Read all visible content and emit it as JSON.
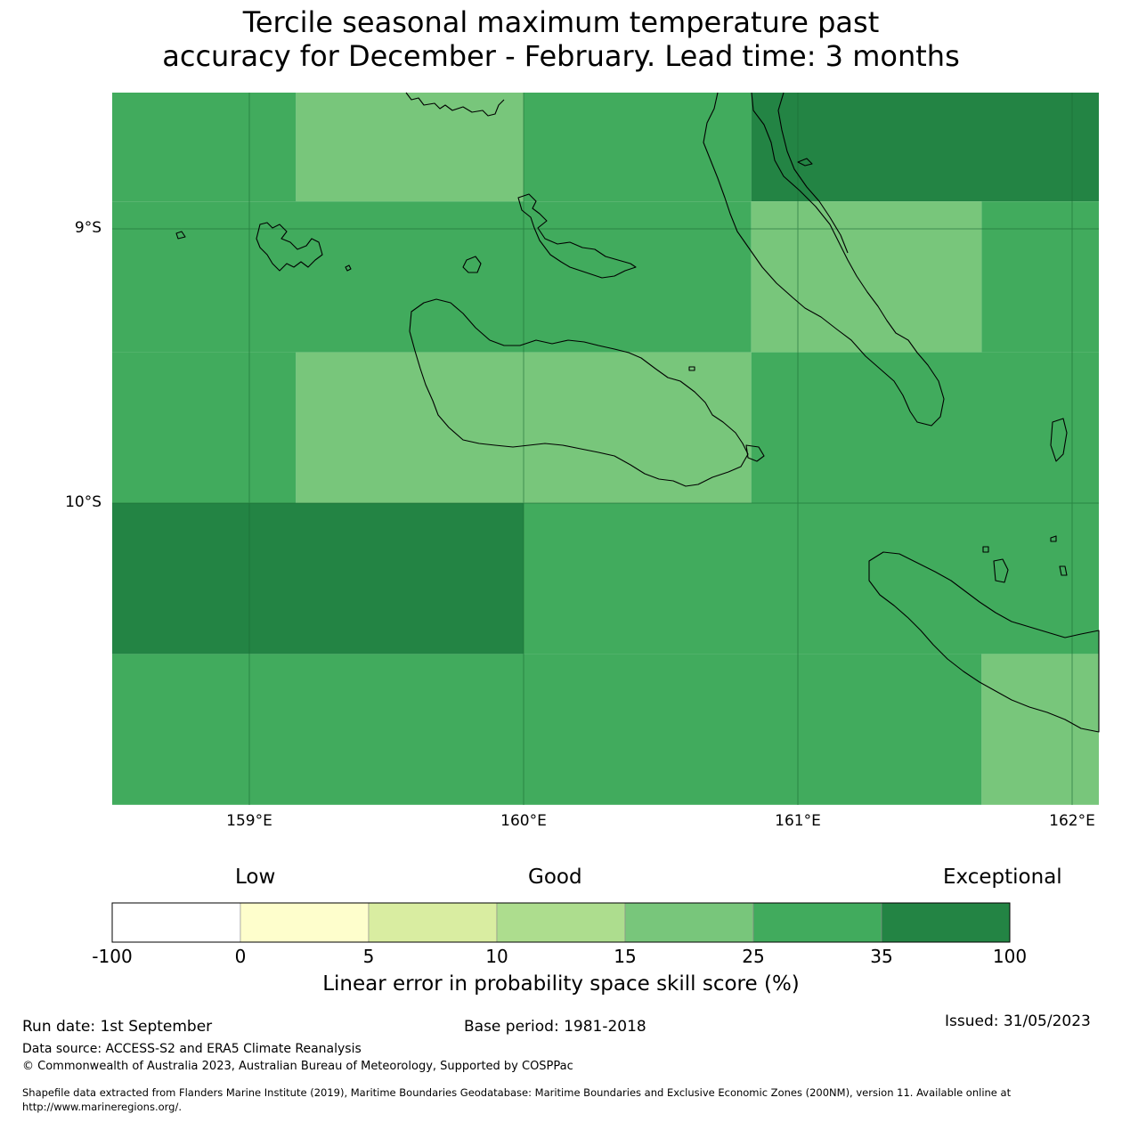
{
  "title": {
    "line1": "Tercile seasonal maximum temperature past",
    "line2": "accuracy for December - February. Lead time: 3 months"
  },
  "map": {
    "lat_labels": [
      "9°S",
      "10°S"
    ],
    "lon_labels": [
      "159°E",
      "160°E",
      "161°E",
      "162°E"
    ],
    "cells": [
      {
        "lon": [
          158.5,
          159.17
        ],
        "lat": [
          -8.5,
          -8.9
        ],
        "category": "25-35"
      },
      {
        "lon": [
          159.17,
          160.0
        ],
        "lat": [
          -8.5,
          -8.9
        ],
        "category": "15-25"
      },
      {
        "lon": [
          160.0,
          160.83
        ],
        "lat": [
          -8.5,
          -8.9
        ],
        "category": "25-35"
      },
      {
        "lon": [
          160.83,
          162.1
        ],
        "lat": [
          -8.5,
          -8.9
        ],
        "category": "35-100"
      },
      {
        "lon": [
          158.5,
          160.83
        ],
        "lat": [
          -8.9,
          -9.45
        ],
        "category": "25-35"
      },
      {
        "lon": [
          160.83,
          161.67
        ],
        "lat": [
          -8.9,
          -9.45
        ],
        "category": "15-25"
      },
      {
        "lon": [
          161.67,
          162.1
        ],
        "lat": [
          -8.9,
          -9.45
        ],
        "category": "25-35"
      },
      {
        "lon": [
          158.5,
          159.17
        ],
        "lat": [
          -9.45,
          -10.0
        ],
        "category": "25-35"
      },
      {
        "lon": [
          159.17,
          160.83
        ],
        "lat": [
          -9.45,
          -10.0
        ],
        "category": "15-25"
      },
      {
        "lon": [
          160.83,
          162.1
        ],
        "lat": [
          -9.45,
          -10.0
        ],
        "category": "25-35"
      },
      {
        "lon": [
          158.5,
          160.0
        ],
        "lat": [
          -10.0,
          -10.55
        ],
        "category": "35-100"
      },
      {
        "lon": [
          160.0,
          162.1
        ],
        "lat": [
          -10.0,
          -10.55
        ],
        "category": "25-35"
      },
      {
        "lon": [
          158.5,
          161.67
        ],
        "lat": [
          -10.55,
          -11.1
        ],
        "category": "25-35"
      },
      {
        "lon": [
          161.67,
          162.1
        ],
        "lat": [
          -10.55,
          -11.1
        ],
        "category": "15-25"
      }
    ]
  },
  "colorbar": {
    "words": {
      "low": "Low",
      "good": "Good",
      "exceptional": "Exceptional"
    },
    "ticks": [
      "-100",
      "0",
      "5",
      "10",
      "15",
      "25",
      "35",
      "100"
    ],
    "bins": [
      {
        "range": "-100-0",
        "color": "#ffffff"
      },
      {
        "range": "0-5",
        "color": "#fefecc"
      },
      {
        "range": "5-10",
        "color": "#d9eda1"
      },
      {
        "range": "10-15",
        "color": "#addd8e"
      },
      {
        "range": "15-25",
        "color": "#78c67b"
      },
      {
        "range": "25-35",
        "color": "#41ab5d"
      },
      {
        "range": "35-100",
        "color": "#238444"
      }
    ],
    "label": "Linear error in probability space skill score (%)"
  },
  "footer": {
    "run_date": "Run date: 1st September",
    "base_period": "Base period: 1981-2018",
    "issued": "Issued: 31/05/2023",
    "data_source": "Data source: ACCESS-S2 and ERA5 Climate Reanalysis",
    "copyright": "© Commonwealth of Australia 2023, Australian Bureau of Meteorology, Supported by COSPPac",
    "shapefile_line1": "Shapefile data extracted from Flanders Marine Institute (2019), Maritime Boundaries Geodatabase: Maritime Boundaries and Exclusive Economic Zones (200NM), version 11. Available online at",
    "shapefile_line2": "http://www.marineregions.org/."
  }
}
